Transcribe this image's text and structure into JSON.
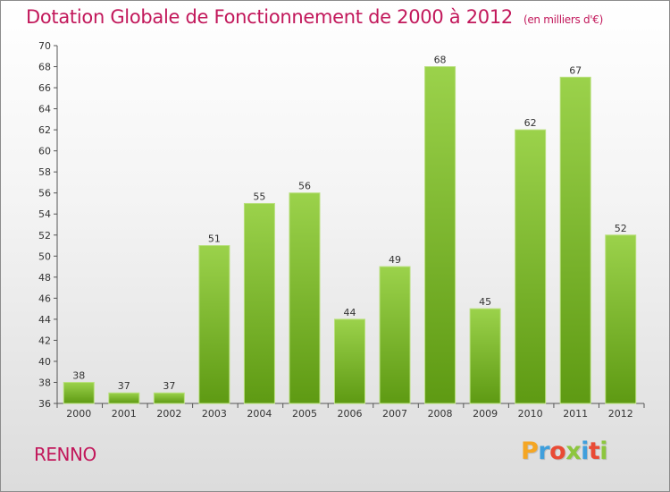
{
  "header": {
    "title": "Dotation Globale de Fonctionnement de 2000 à 2012",
    "subtitle": "(en milliers d'€)"
  },
  "commune": "RENNO",
  "logo": {
    "letters": [
      "P",
      "r",
      "o",
      "x",
      "i",
      "t",
      "i"
    ],
    "colors": [
      "#f5a623",
      "#3f9fdc",
      "#e94b35",
      "#8dc63f",
      "#3f9fdc",
      "#e94b35",
      "#8dc63f"
    ]
  },
  "chart_data": {
    "type": "bar",
    "categories": [
      "2000",
      "2001",
      "2002",
      "2003",
      "2004",
      "2005",
      "2006",
      "2007",
      "2008",
      "2009",
      "2010",
      "2011",
      "2012"
    ],
    "values": [
      38,
      37,
      37,
      51,
      55,
      56,
      44,
      49,
      68,
      45,
      62,
      67,
      52
    ],
    "data_labels": [
      "38",
      "37",
      "37",
      "51",
      "55",
      "56",
      "44",
      "49",
      "68",
      "45",
      "62",
      "67",
      "52"
    ],
    "yticks": [
      "36",
      "38",
      "40",
      "42",
      "44",
      "46",
      "48",
      "50",
      "52",
      "54",
      "56",
      "58",
      "60",
      "62",
      "64",
      "66",
      "68",
      "70"
    ],
    "ylim": [
      36,
      70
    ],
    "ytick_step": 2,
    "grid": false,
    "bar_color_top": "#9bd24b",
    "bar_color_bottom": "#5e9a13"
  }
}
